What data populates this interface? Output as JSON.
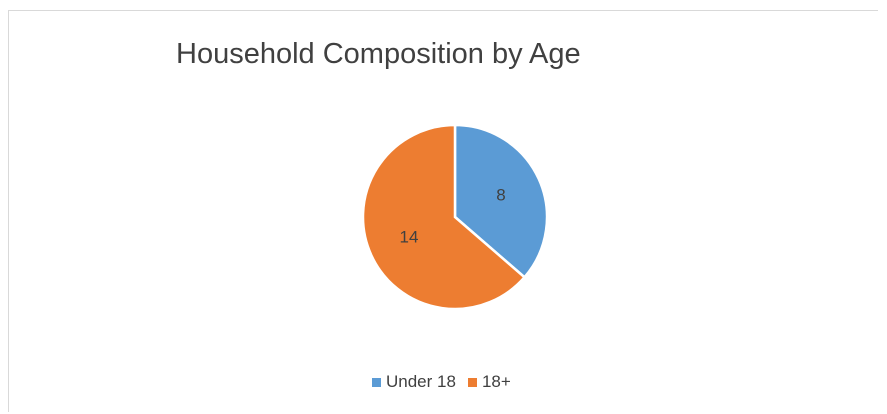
{
  "chart_data": {
    "type": "pie",
    "title": "Household Composition by Age",
    "categories": [
      "Under 18",
      "18+"
    ],
    "values": [
      8,
      14
    ],
    "data_labels": [
      "8",
      "14"
    ],
    "colors": [
      "#5b9bd5",
      "#ed7d31"
    ],
    "start_angle": "12 o'clock, clockwise",
    "legend_position": "bottom"
  }
}
